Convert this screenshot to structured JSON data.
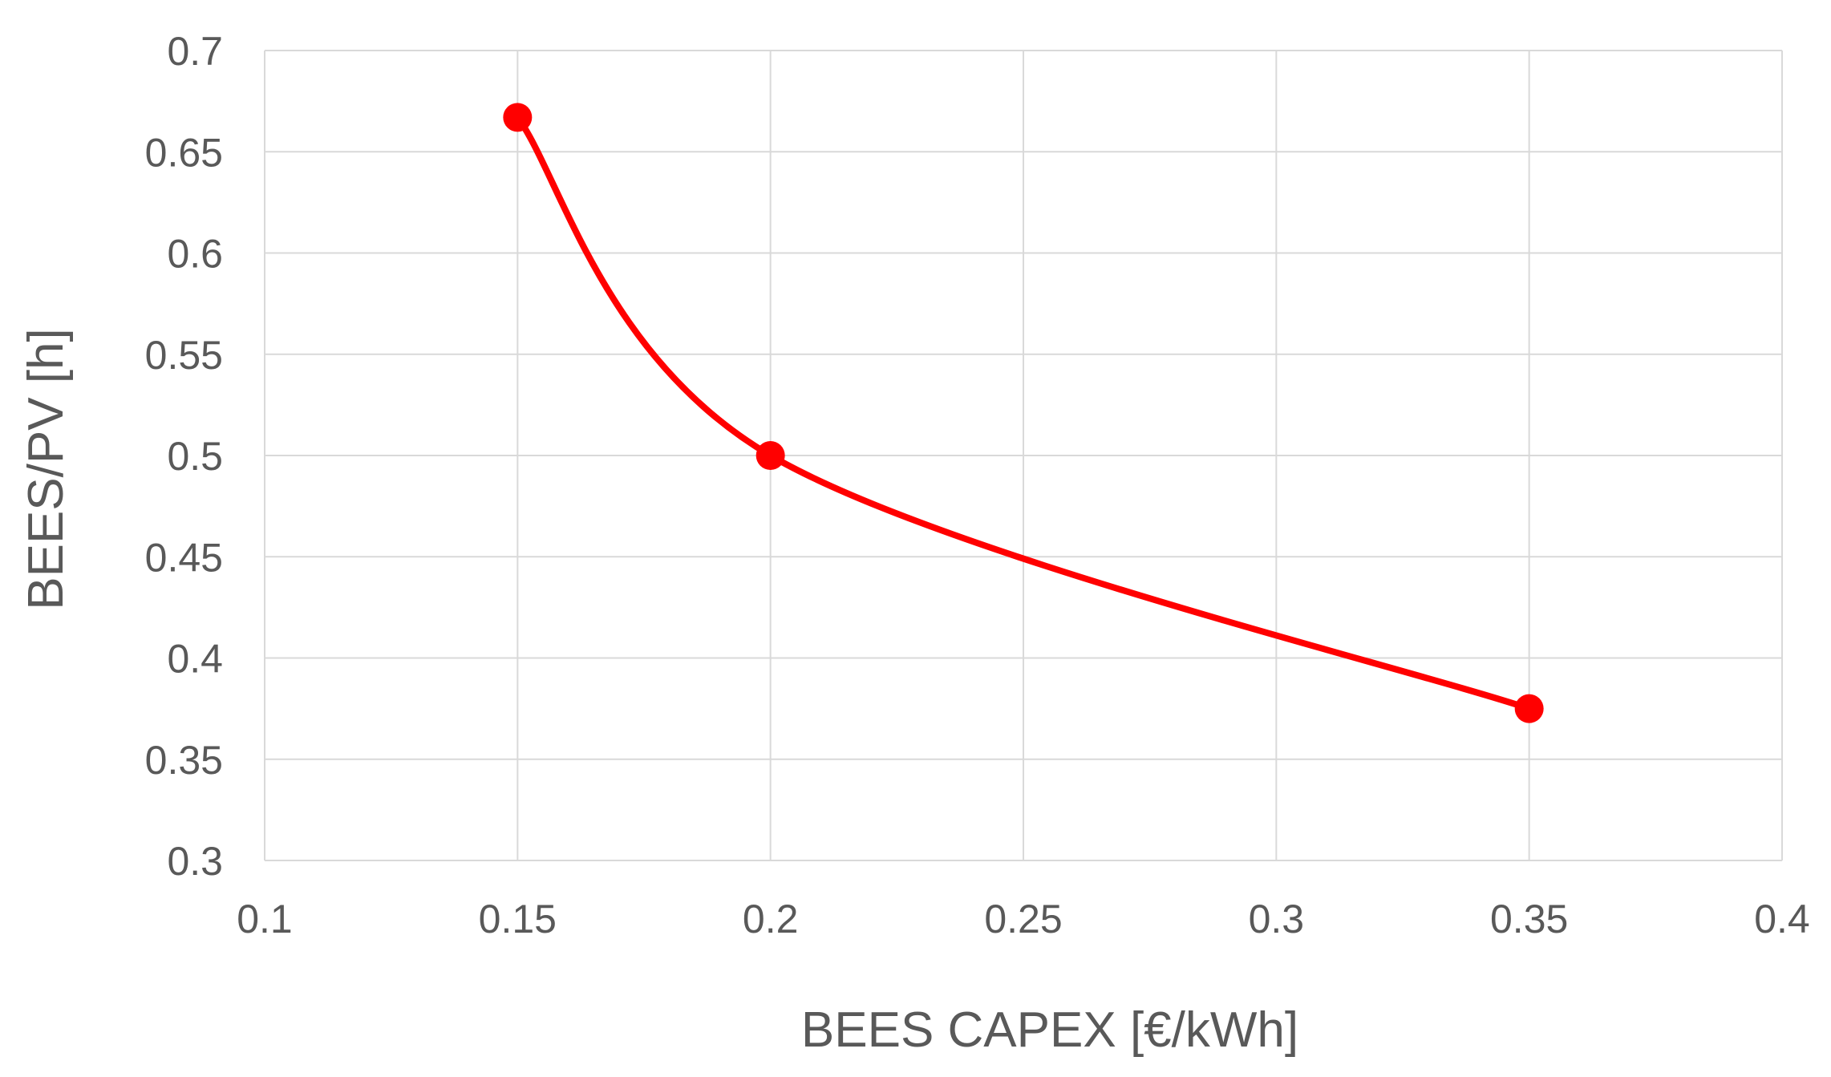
{
  "chart_data": {
    "type": "scatter",
    "line": "smooth",
    "title": "",
    "xlabel": "BEES CAPEX [€/kWh]",
    "ylabel": "BEES/PV [h]",
    "xlim": [
      0.1,
      0.4
    ],
    "ylim": [
      0.3,
      0.7
    ],
    "x_ticks": [
      0.1,
      0.15,
      0.2,
      0.25,
      0.3,
      0.35,
      0.4
    ],
    "y_ticks": [
      0.3,
      0.35,
      0.4,
      0.45,
      0.5,
      0.55,
      0.6,
      0.65,
      0.7
    ],
    "x_tick_labels": [
      "0.1",
      "0.15",
      "0.2",
      "0.25",
      "0.3",
      "0.35",
      "0.4"
    ],
    "y_tick_labels": [
      "0.3",
      "0.35",
      "0.4",
      "0.45",
      "0.5",
      "0.55",
      "0.6",
      "0.65",
      "0.7"
    ],
    "grid": true,
    "legend": "none",
    "series": [
      {
        "color": "#ff0000",
        "x": [
          0.15,
          0.2,
          0.35
        ],
        "y": [
          0.667,
          0.5,
          0.375
        ]
      }
    ],
    "colors": {
      "series": "#ff0000",
      "grid": "#d9d9d9",
      "text": "#595959"
    }
  }
}
